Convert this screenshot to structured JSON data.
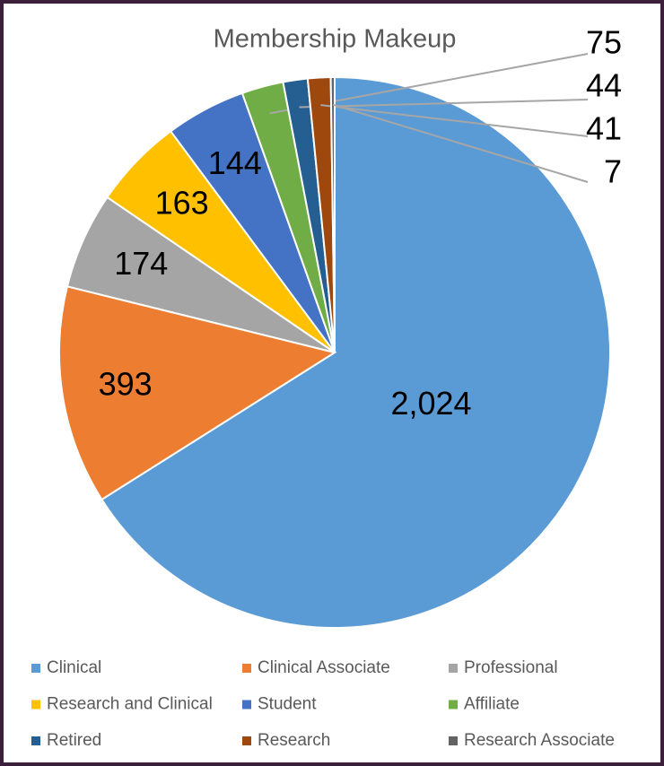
{
  "chart_data": {
    "type": "pie",
    "title": "Membership Makeup",
    "categories": [
      "Clinical",
      "Clinical Associate",
      "Professional",
      "Research and Clinical",
      "Student",
      "Affiliate",
      "Retired",
      "Research",
      "Research Associate"
    ],
    "values": [
      2024,
      393,
      174,
      163,
      144,
      75,
      44,
      41,
      7
    ],
    "value_labels": [
      "2,024",
      "393",
      "174",
      "163",
      "144",
      "75",
      "44",
      "41",
      "7"
    ],
    "colors": [
      "#5b9bd5",
      "#ed7d31",
      "#a5a5a5",
      "#ffc000",
      "#4472c4",
      "#70ad47",
      "#255e91",
      "#9e480e",
      "#636363"
    ],
    "legend": "bottom"
  }
}
